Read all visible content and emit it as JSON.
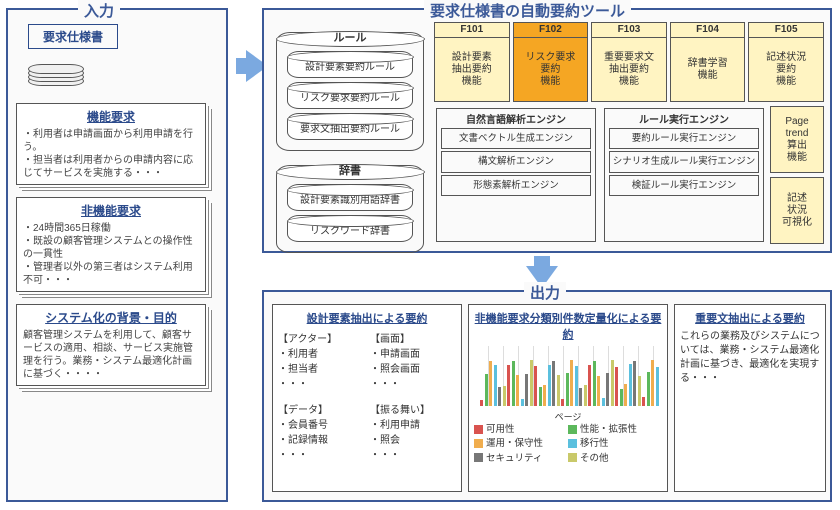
{
  "colors": {
    "frame": "#3b5998",
    "arrow": "#7ba9e0",
    "f_default_bg": "#fff4c2",
    "f_highlight_bg": "#f5a623",
    "legend": {
      "availability": "#d9534f",
      "performance": "#5cb85c",
      "operability": "#f0ad4e",
      "portability": "#5bc0de",
      "security": "#777777",
      "other": "#c9c96a"
    }
  },
  "input": {
    "title": "入力",
    "spec_label": "要求仕様書",
    "docs": [
      {
        "title": "機能要求",
        "body": "・利用者は申請画面から利用申請を行う。\n・担当者は利用者からの申請内容に応じてサービスを実施する・・・"
      },
      {
        "title": "非機能要求",
        "body": "・24時間365日稼働\n・既設の顧客管理システムとの操作性の一貫性\n・管理者以外の第三者はシステム利用不可・・・"
      },
      {
        "title": "システム化の背景・目的",
        "body": "顧客管理システムを利用して、顧客サービスの適用、相談、サービス実施管理を行う。業務・システム最適化計画に基づく・・・・"
      }
    ]
  },
  "tool": {
    "title": "要求仕様書の自動要約ツール",
    "rule_group": "ルール",
    "rules": [
      "設計要素要約ルール",
      "リスク要求要約ルール",
      "要求文抽出要約ルール"
    ],
    "dict_group": "辞書",
    "dicts": [
      "設計要素識別用語辞書",
      "リスクワード辞書"
    ],
    "functions": [
      {
        "id": "F101",
        "label": "設計要素\n抽出要約\n機能",
        "hl": false
      },
      {
        "id": "F102",
        "label": "リスク要求\n要約\n機能",
        "hl": true
      },
      {
        "id": "F103",
        "label": "重要要求文\n抽出要約\n機能",
        "hl": false
      },
      {
        "id": "F104",
        "label": "辞書学習\n機能",
        "hl": false
      },
      {
        "id": "F105",
        "label": "記述状況\n要約\n機能",
        "hl": false
      }
    ],
    "extras": [
      "Page\ntrend\n算出\n機能",
      "記述\n状況\n可視化"
    ],
    "nlp_title": "自然言語解析エンジン",
    "nlp": [
      "文書ベクトル生成エンジン",
      "構文解析エンジン",
      "形態素解析エンジン"
    ],
    "rule_engine_title": "ルール実行エンジン",
    "rule_engines": [
      "要約ルール実行エンジン",
      "シナリオ生成ルール実行エンジン",
      "検証ルール実行エンジン"
    ]
  },
  "output": {
    "title": "出力",
    "col1": {
      "title": "設計要素抽出による要約",
      "groups": [
        {
          "h": "【アクター】",
          "items": "・利用者\n・担当者\n・・・"
        },
        {
          "h": "【画面】",
          "items": "・申請画面\n・照会画面\n・・・"
        },
        {
          "h": "【データ】",
          "items": "・会員番号\n・記録情報\n・・・"
        },
        {
          "h": "【振る舞い】",
          "items": "・利用申請\n・照会\n・・・"
        }
      ]
    },
    "col2": {
      "title": "非機能要求分類別件数定量化による要約",
      "xaxis": "ページ",
      "legend": [
        {
          "label": "可用性",
          "c": "availability"
        },
        {
          "label": "性能・拡張性",
          "c": "performance"
        },
        {
          "label": "運用・保守性",
          "c": "operability"
        },
        {
          "label": "移行性",
          "c": "portability"
        },
        {
          "label": "セキュリティ",
          "c": "security"
        },
        {
          "label": "その他",
          "c": "other"
        }
      ]
    },
    "col3": {
      "title": "重要文抽出による要約",
      "body": "これらの業務及びシステムについては、業務・システム最適化計画に基づき、最適化を実現する・・・"
    }
  }
}
